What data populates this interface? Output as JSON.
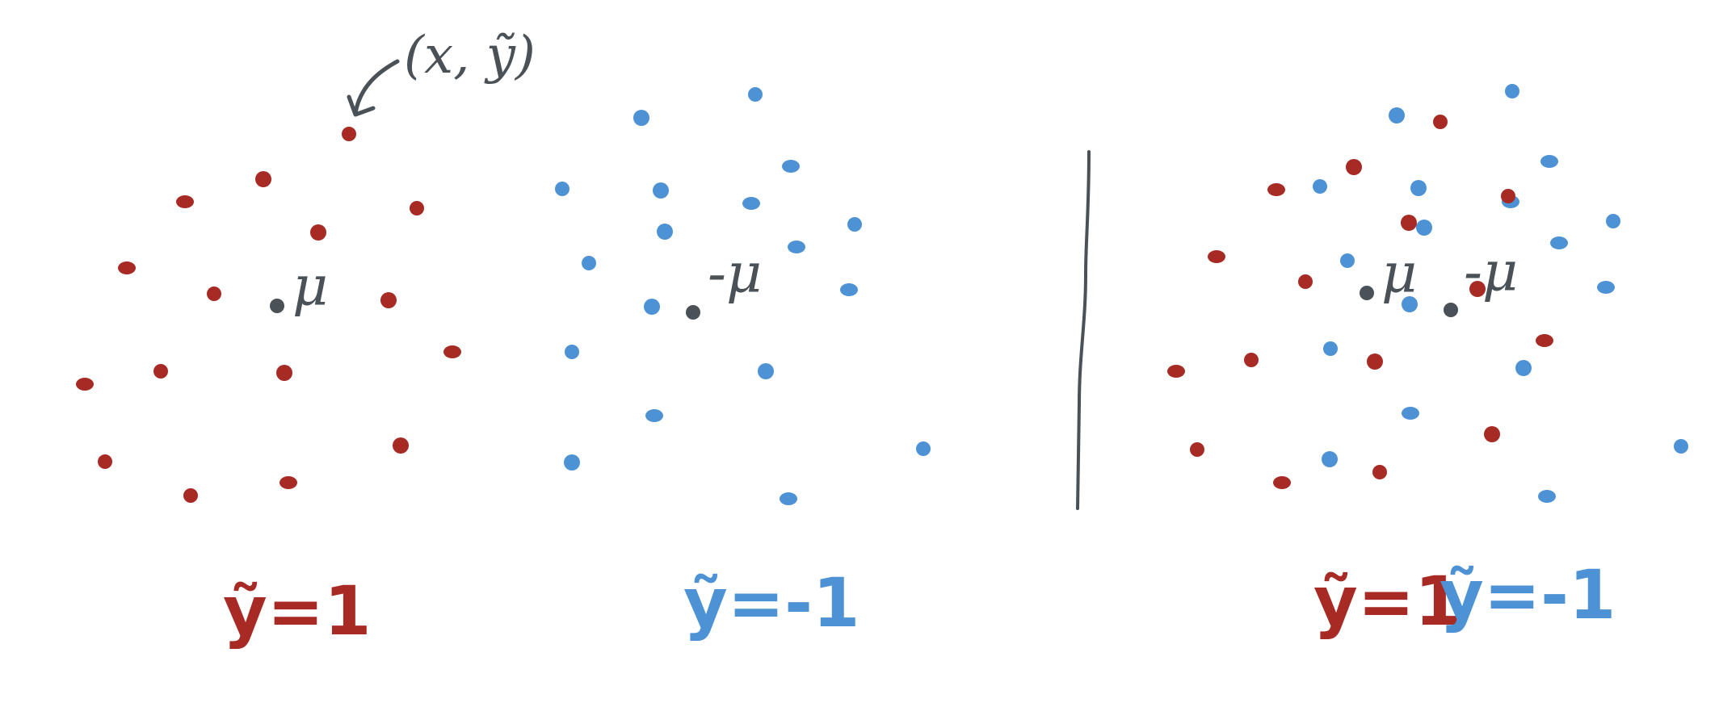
{
  "colors": {
    "positive": "#a82a24",
    "negative": "#4e92d6",
    "ink": "#4a5157"
  },
  "annotation": {
    "point_label": "(x, ỹ)"
  },
  "panels": [
    {
      "mean_label": "μ",
      "class_label": "ỹ=1"
    },
    {
      "mean_label": "-μ",
      "class_label": "ỹ=-1"
    },
    {
      "mean_labels": [
        "μ",
        "-μ"
      ],
      "class_labels": [
        "ỹ=1",
        "ỹ=-1"
      ]
    }
  ]
}
